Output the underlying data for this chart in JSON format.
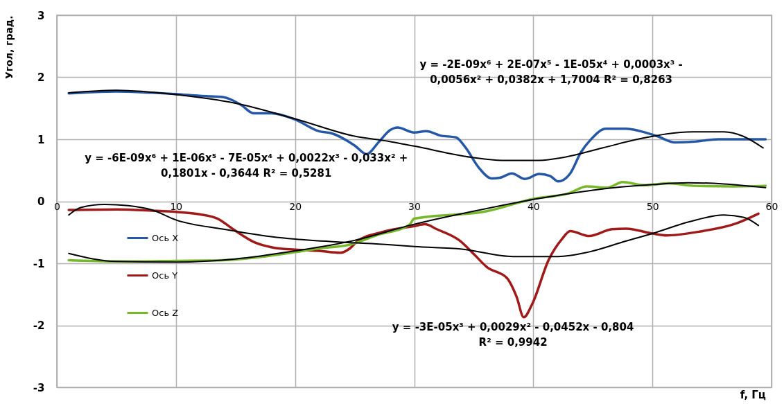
{
  "chart_data": {
    "type": "line",
    "ylabel": "Угол, град.",
    "xlabel": "f, Гц",
    "xlim": [
      0,
      60
    ],
    "xticks": [
      0,
      10,
      20,
      30,
      40,
      50,
      60
    ],
    "ylim": [
      -3,
      3
    ],
    "yticks": [
      {
        "value": -3,
        "label": "-3"
      },
      {
        "value": -2,
        "label": "-2"
      },
      {
        "value": -1,
        "label": "-1"
      },
      0,
      1,
      2,
      3
    ],
    "grid": true,
    "legend": "bottom left",
    "annotations": [
      "y = -2E-09x⁶ + 2E-07x⁵ - 1E-05x⁴ + 0,0003x³ -\n0,0056x² + 0,0382x + 1,7004  R² = 0,8263",
      "y = -6E-09x⁶ + 1E-06x⁵ - 7E-05x⁴ + 0,0022x³ - 0,033x² +\n0,1801x - 0,3644  R² = 0,5281",
      "y = -3E-05x³ + 0,0029x² - 0,0452x - 0,804\nR² = 0,9942"
    ],
    "series": [
      {
        "name": "Ось X",
        "color": "#2457a6",
        "x": [
          1,
          3,
          5,
          8,
          10,
          12,
          14,
          15.5,
          16.5,
          18,
          20,
          22,
          23,
          25,
          26,
          27,
          28,
          28.6,
          30,
          31,
          32.2,
          33.5,
          34.3,
          35.4,
          36.5,
          37.2,
          38.2,
          39.3,
          40.5,
          41.4,
          42.1,
          43.1,
          44,
          44.8,
          46.1,
          47.8,
          49,
          50.4,
          51.9,
          53.4,
          55.5,
          59.5
        ],
        "values": [
          1.74,
          1.76,
          1.77,
          1.75,
          1.73,
          1.7,
          1.68,
          1.55,
          1.42,
          1.42,
          1.32,
          1.13,
          1.1,
          0.9,
          0.76,
          0.95,
          1.15,
          1.19,
          1.11,
          1.13,
          1.06,
          1.03,
          0.87,
          0.55,
          0.37,
          0.38,
          0.45,
          0.36,
          0.44,
          0.41,
          0.32,
          0.45,
          0.79,
          0.99,
          1.17,
          1.17,
          1.13,
          1.05,
          0.95,
          0.96,
          1.0,
          1.0
        ]
      },
      {
        "name": "Ось Y",
        "color": "#a01a1a",
        "x": [
          1,
          5,
          8,
          10,
          12,
          13.5,
          14.8,
          16.7,
          18,
          20,
          22,
          23.8,
          24.6,
          25.2,
          27.4,
          30,
          30.9,
          31.9,
          33.8,
          35.1,
          36.1,
          37.8,
          38.6,
          39.2,
          39.9,
          41.3,
          42.4,
          43.1,
          44.7,
          46.6,
          47.8,
          50,
          51.2,
          53.9,
          57,
          58.9
        ],
        "values": [
          -0.14,
          -0.13,
          -0.15,
          -0.17,
          -0.21,
          -0.28,
          -0.45,
          -0.67,
          -0.74,
          -0.78,
          -0.8,
          -0.83,
          -0.76,
          -0.65,
          -0.49,
          -0.4,
          -0.37,
          -0.45,
          -0.63,
          -0.87,
          -1.06,
          -1.24,
          -1.54,
          -1.87,
          -1.66,
          -0.94,
          -0.61,
          -0.48,
          -0.56,
          -0.45,
          -0.44,
          -0.52,
          -0.55,
          -0.49,
          -0.36,
          -0.2
        ]
      },
      {
        "name": "Ось Z",
        "color": "#76b82a",
        "x": [
          1,
          5,
          10,
          14,
          17,
          20,
          22,
          24.6,
          26.8,
          29.6,
          30,
          36.1,
          40,
          43,
          44.5,
          46.2,
          47.5,
          49.3,
          51.4,
          53.4,
          56.6,
          59.5
        ],
        "values": [
          -0.95,
          -0.97,
          -0.96,
          -0.95,
          -0.9,
          -0.82,
          -0.76,
          -0.7,
          -0.55,
          -0.38,
          -0.28,
          -0.16,
          0.04,
          0.13,
          0.24,
          0.22,
          0.31,
          0.26,
          0.29,
          0.25,
          0.24,
          0.25
        ]
      },
      {
        "type": "line",
        "color": "#000000",
        "x": [
          1,
          5,
          10,
          15,
          20,
          25,
          27.8,
          30,
          34.8,
          37.4,
          40.5,
          42.6,
          45.8,
          49,
          53.4,
          56,
          57.6,
          59.3
        ],
        "values": [
          1.75,
          1.79,
          1.72,
          1.58,
          1.33,
          1.05,
          0.97,
          0.89,
          0.71,
          0.66,
          0.66,
          0.71,
          0.86,
          1.01,
          1.12,
          1.12,
          1.05,
          0.86
        ]
      },
      {
        "type": "line",
        "color": "#000000",
        "x": [
          1,
          2,
          4,
          6,
          8,
          10,
          14,
          18,
          20,
          24,
          28,
          30,
          34,
          38.3,
          42.1,
          44.6,
          47.8,
          50,
          53.1,
          56,
          57.7,
          58.9
        ],
        "values": [
          -0.22,
          -0.1,
          -0.05,
          -0.07,
          -0.14,
          -0.3,
          -0.45,
          -0.57,
          -0.61,
          -0.66,
          -0.7,
          -0.73,
          -0.77,
          -0.89,
          -0.89,
          -0.82,
          -0.64,
          -0.52,
          -0.33,
          -0.22,
          -0.26,
          -0.39
        ]
      },
      {
        "type": "line",
        "color": "#000000",
        "x": [
          1,
          5,
          10,
          15,
          20,
          25,
          30,
          35,
          40,
          45,
          50,
          53,
          56,
          59.5
        ],
        "values": [
          -0.84,
          -0.97,
          -0.98,
          -0.93,
          -0.8,
          -0.63,
          -0.37,
          -0.16,
          0.03,
          0.18,
          0.27,
          0.3,
          0.28,
          0.22
        ]
      }
    ]
  }
}
